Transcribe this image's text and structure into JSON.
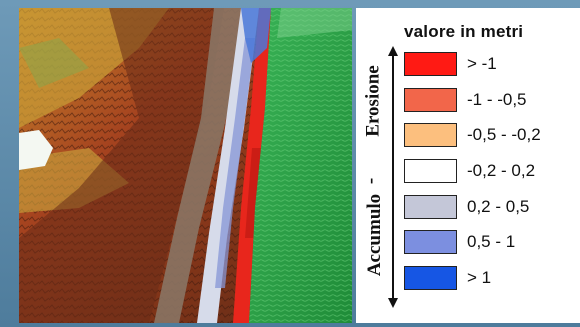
{
  "legend": {
    "title": "valore in metri",
    "erosion_label": "Erosione",
    "separator": "-",
    "accumulation_label": "Accumulo",
    "classes": [
      {
        "label": "> -1",
        "color": "#ff1a14"
      },
      {
        "label": "-1 - -0,5",
        "color": "#f2664a"
      },
      {
        "label": "-0,5 - -0,2",
        "color": "#fcbf7e"
      },
      {
        "label": "-0,2 - 0,2",
        "color": "#ffffff"
      },
      {
        "label": "0,2 - 0,5",
        "color": "#c4c7d8"
      },
      {
        "label": "0,5 - 1",
        "color": "#7c8fe0"
      },
      {
        "label": "> 1",
        "color": "#1656e4"
      }
    ]
  },
  "map": {
    "description_colors": {
      "sea": "#2fa64a",
      "terrain_high": "#7a3a1e",
      "terrain_mid": "#b5452a",
      "terrain_low": "#d8a03a",
      "ridge": "#8a7060",
      "erosion": "#e8261c",
      "accumulation": "#8898d8"
    }
  }
}
